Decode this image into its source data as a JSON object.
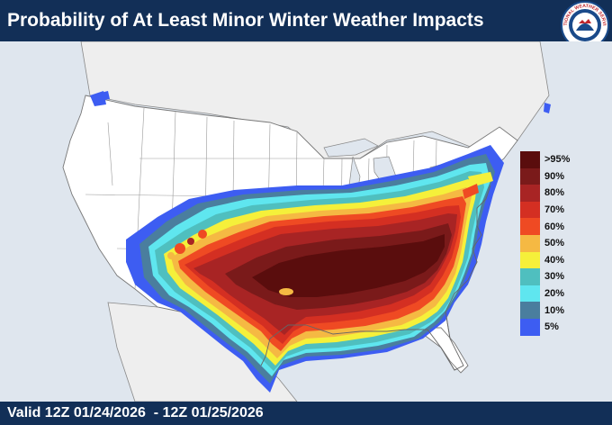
{
  "header": {
    "title": "Probability of At Least Minor Winter Weather Impacts"
  },
  "logo": {
    "icon": "nws-logo-icon",
    "text": "NATIONAL WEATHER SERVICE"
  },
  "footer": {
    "valid_text": "Valid 12Z 01/24/2026  - 12Z 01/25/2026"
  },
  "legend": {
    "items": [
      {
        "label": ">95%",
        "color": "#5a0d0d"
      },
      {
        "label": "90%",
        "color": "#7a1a1a"
      },
      {
        "label": "80%",
        "color": "#a82424"
      },
      {
        "label": "70%",
        "color": "#d42f22"
      },
      {
        "label": "60%",
        "color": "#ef4a23"
      },
      {
        "label": "50%",
        "color": "#f5b943"
      },
      {
        "label": "40%",
        "color": "#f5f03a"
      },
      {
        "label": "30%",
        "color": "#4fbfbf"
      },
      {
        "label": "20%",
        "color": "#5fe6ef"
      },
      {
        "label": "10%",
        "color": "#4a7e9e"
      },
      {
        "label": "5%",
        "color": "#3d5df2"
      }
    ]
  },
  "colors": {
    "header_bg": "#122f57",
    "ocean": "#dfe6ee",
    "land": "#ffffff",
    "foreign_land": "#eeeeee"
  }
}
